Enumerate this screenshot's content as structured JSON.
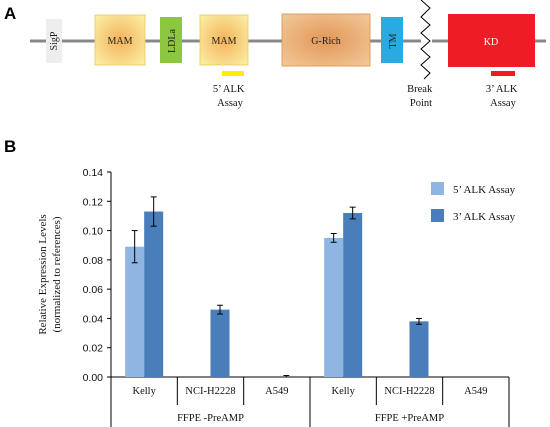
{
  "panel_a": {
    "letter": "A",
    "domains": [
      {
        "id": "sigp",
        "label": "SigP",
        "color": "#eeeeee",
        "vertical": true
      },
      {
        "id": "mam1",
        "label": "MAM",
        "color": "#f6dc7a",
        "vertical": false
      },
      {
        "id": "ldla",
        "label": "LDLa",
        "color": "#8dc63f",
        "vertical": true
      },
      {
        "id": "mam2",
        "label": "MAM",
        "color": "#f6dc7a",
        "vertical": false
      },
      {
        "id": "grich",
        "label": "G-Rich",
        "color": "#e8a868",
        "vertical": false
      },
      {
        "id": "tm",
        "label": "TM",
        "color": "#29abe2",
        "vertical": true
      },
      {
        "id": "kd",
        "label": "KD",
        "color": "#ee1c25",
        "vertical": false
      }
    ],
    "assay5_label": [
      "5’ ALK",
      "Assay"
    ],
    "break_label": [
      "Break",
      "Point"
    ],
    "assay3_label": [
      "3’ ALK",
      "Assay"
    ],
    "assay5_color": "#ffed00",
    "assay3_color": "#ee1c25"
  },
  "panel_b": {
    "letter": "B"
  },
  "chart_data": {
    "type": "bar",
    "ylabel": [
      "Relative Expression Levels",
      "(normalized to references)"
    ],
    "ylim": [
      0,
      0.14
    ],
    "yticks": [
      "0.00",
      "0.02",
      "0.04",
      "0.06",
      "0.08",
      "0.10",
      "0.12",
      "0.14"
    ],
    "grid": false,
    "legend_position": "top-right",
    "groups": [
      {
        "label": "FFPE -PreAMP",
        "categories": [
          "Kelly",
          "NCI-H2228",
          "A549"
        ]
      },
      {
        "label": "FFPE +PreAMP",
        "categories": [
          "Kelly",
          "NCI-H2228",
          "A549"
        ]
      }
    ],
    "series": [
      {
        "name": "5’ ALK Assay",
        "color": "#8fb5e3",
        "values": [
          0.089,
          0.0,
          0.0,
          0.095,
          0.0,
          0.0
        ],
        "errors": [
          0.011,
          0,
          0,
          0.003,
          0,
          0
        ]
      },
      {
        "name": "3’ ALK Assay",
        "color": "#4a7ebb",
        "values": [
          0.113,
          0.046,
          0.0,
          0.112,
          0.038,
          0.0
        ],
        "errors": [
          0.01,
          0.003,
          0.001,
          0.004,
          0.002,
          0
        ]
      }
    ]
  }
}
